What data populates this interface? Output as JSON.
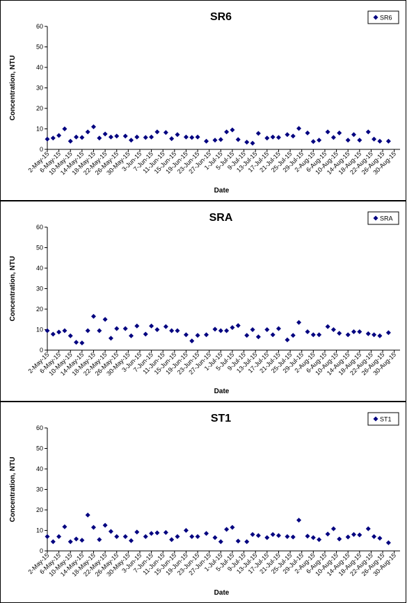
{
  "chart_data": [
    {
      "type": "scatter",
      "title": "SR6",
      "xlabel": "Date",
      "ylabel": "Concentration, NTU",
      "ylim": [
        0,
        60
      ],
      "yticks": [
        0,
        10,
        20,
        30,
        40,
        50,
        60
      ],
      "x_range": [
        "2-May-15",
        "1-Sep-15"
      ],
      "x_tick_labels": [
        "2-May-15",
        "6-May-15",
        "10-May-15",
        "14-May-15",
        "18-May-15",
        "22-May-15",
        "26-May-15",
        "30-May-15",
        "3-Jun-15",
        "7-Jun-15",
        "11-Jun-15",
        "15-Jun-15",
        "19-Jun-15",
        "23-Jun-15",
        "27-Jun-15",
        "1-Jul-15",
        "5-Jul-15",
        "9-Jul-15",
        "13-Jul-15",
        "17-Jul-15",
        "21-Jul-15",
        "25-Jul-15",
        "29-Jul-15",
        "2-Aug-15",
        "6-Aug-15",
        "10-Aug-15",
        "14-Aug-15",
        "18-Aug-15",
        "22-Aug-15",
        "26-Aug-15",
        "30-Aug-15"
      ],
      "grid": false,
      "legend_position": "top-right",
      "series": [
        {
          "name": "SR6",
          "color": "#000080",
          "marker": "diamond",
          "points": [
            [
              "2-May-15",
              5
            ],
            [
              "4-May-15",
              5.5
            ],
            [
              "6-May-15",
              6.8
            ],
            [
              "8-May-15",
              10
            ],
            [
              "10-May-15",
              4
            ],
            [
              "12-May-15",
              6
            ],
            [
              "14-May-15",
              5.8
            ],
            [
              "16-May-15",
              8.5
            ],
            [
              "18-May-15",
              11
            ],
            [
              "20-May-15",
              5.5
            ],
            [
              "22-May-15",
              7.5
            ],
            [
              "24-May-15",
              6
            ],
            [
              "26-May-15",
              6.5
            ],
            [
              "29-May-15",
              6.5
            ],
            [
              "31-May-15",
              4.5
            ],
            [
              "2-Jun-15",
              6
            ],
            [
              "5-Jun-15",
              5.8
            ],
            [
              "7-Jun-15",
              6
            ],
            [
              "9-Jun-15",
              8.5
            ],
            [
              "12-Jun-15",
              8.2
            ],
            [
              "14-Jun-15",
              5.2
            ],
            [
              "16-Jun-15",
              7.2
            ],
            [
              "19-Jun-15",
              6
            ],
            [
              "21-Jun-15",
              5.8
            ],
            [
              "23-Jun-15",
              6
            ],
            [
              "26-Jun-15",
              4
            ],
            [
              "29-Jun-15",
              4.5
            ],
            [
              "1-Jul-15",
              4.8
            ],
            [
              "3-Jul-15",
              8.5
            ],
            [
              "5-Jul-15",
              9.5
            ],
            [
              "7-Jul-15",
              4.8
            ],
            [
              "10-Jul-15",
              3.5
            ],
            [
              "12-Jul-15",
              3
            ],
            [
              "14-Jul-15",
              7.8
            ],
            [
              "17-Jul-15",
              5.5
            ],
            [
              "19-Jul-15",
              6
            ],
            [
              "21-Jul-15",
              5.8
            ],
            [
              "24-Jul-15",
              7.2
            ],
            [
              "26-Jul-15",
              6.5
            ],
            [
              "28-Jul-15",
              10.2
            ],
            [
              "31-Jul-15",
              8
            ],
            [
              "2-Aug-15",
              3.8
            ],
            [
              "4-Aug-15",
              4.5
            ],
            [
              "7-Aug-15",
              8.5
            ],
            [
              "9-Aug-15",
              5.8
            ],
            [
              "11-Aug-15",
              8
            ],
            [
              "14-Aug-15",
              4.5
            ],
            [
              "16-Aug-15",
              7.2
            ],
            [
              "18-Aug-15",
              4.5
            ],
            [
              "21-Aug-15",
              8.5
            ],
            [
              "23-Aug-15",
              5
            ],
            [
              "25-Aug-15",
              4
            ],
            [
              "28-Aug-15",
              4
            ]
          ]
        }
      ]
    },
    {
      "type": "scatter",
      "title": "SRA",
      "xlabel": "Date",
      "ylabel": "Concentration, NTU",
      "ylim": [
        0,
        60
      ],
      "yticks": [
        0,
        10,
        20,
        30,
        40,
        50,
        60
      ],
      "x_range": [
        "2-May-15",
        "1-Sep-15"
      ],
      "x_tick_labels": [
        "2-May-15",
        "6-May-15",
        "10-May-15",
        "14-May-15",
        "18-May-15",
        "22-May-15",
        "26-May-15",
        "30-May-15",
        "3-Jun-15",
        "7-Jun-15",
        "11-Jun-15",
        "15-Jun-15",
        "19-Jun-15",
        "23-Jun-15",
        "27-Jun-15",
        "1-Jul-15",
        "5-Jul-15",
        "9-Jul-15",
        "13-Jul-15",
        "17-Jul-15",
        "21-Jul-15",
        "25-Jul-15",
        "29-Jul-15",
        "2-Aug-15",
        "6-Aug-15",
        "10-Aug-15",
        "14-Aug-15",
        "18-Aug-15",
        "22-Aug-15",
        "26-Aug-15",
        "30-Aug-15"
      ],
      "grid": false,
      "legend_position": "top-right",
      "series": [
        {
          "name": "SRA",
          "color": "#000080",
          "marker": "diamond",
          "points": [
            [
              "2-May-15",
              9.5
            ],
            [
              "4-May-15",
              7.8
            ],
            [
              "6-May-15",
              8.8
            ],
            [
              "8-May-15",
              9.5
            ],
            [
              "10-May-15",
              7
            ],
            [
              "12-May-15",
              3.8
            ],
            [
              "14-May-15",
              3.5
            ],
            [
              "16-May-15",
              9.5
            ],
            [
              "18-May-15",
              16.5
            ],
            [
              "20-May-15",
              9.5
            ],
            [
              "22-May-15",
              15
            ],
            [
              "24-May-15",
              5.8
            ],
            [
              "26-May-15",
              10.5
            ],
            [
              "29-May-15",
              10.5
            ],
            [
              "31-May-15",
              7
            ],
            [
              "2-Jun-15",
              11.8
            ],
            [
              "5-Jun-15",
              7.8
            ],
            [
              "7-Jun-15",
              11.8
            ],
            [
              "9-Jun-15",
              10
            ],
            [
              "12-Jun-15",
              11.5
            ],
            [
              "14-Jun-15",
              9.5
            ],
            [
              "16-Jun-15",
              9.5
            ],
            [
              "19-Jun-15",
              7.5
            ],
            [
              "21-Jun-15",
              4.5
            ],
            [
              "23-Jun-15",
              7.2
            ],
            [
              "26-Jun-15",
              7.5
            ],
            [
              "29-Jun-15",
              10.2
            ],
            [
              "1-Jul-15",
              9.5
            ],
            [
              "3-Jul-15",
              9.5
            ],
            [
              "5-Jul-15",
              11
            ],
            [
              "7-Jul-15",
              12
            ],
            [
              "10-Jul-15",
              7.2
            ],
            [
              "12-Jul-15",
              10
            ],
            [
              "14-Jul-15",
              6.5
            ],
            [
              "17-Jul-15",
              10
            ],
            [
              "19-Jul-15",
              7.5
            ],
            [
              "21-Jul-15",
              10.5
            ],
            [
              "24-Jul-15",
              5
            ],
            [
              "26-Jul-15",
              7.2
            ],
            [
              "28-Jul-15",
              13.5
            ],
            [
              "31-Jul-15",
              9
            ],
            [
              "2-Aug-15",
              7.5
            ],
            [
              "4-Aug-15",
              7.5
            ],
            [
              "7-Aug-15",
              11.5
            ],
            [
              "9-Aug-15",
              10
            ],
            [
              "11-Aug-15",
              8.2
            ],
            [
              "14-Aug-15",
              7.5
            ],
            [
              "16-Aug-15",
              9
            ],
            [
              "18-Aug-15",
              9
            ],
            [
              "21-Aug-15",
              8
            ],
            [
              "23-Aug-15",
              7.5
            ],
            [
              "25-Aug-15",
              7
            ],
            [
              "28-Aug-15",
              8.5
            ]
          ]
        }
      ]
    },
    {
      "type": "scatter",
      "title": "ST1",
      "xlabel": "Date",
      "ylabel": "Concentration, NTU",
      "ylim": [
        0,
        60
      ],
      "yticks": [
        0,
        10,
        20,
        30,
        40,
        50,
        60
      ],
      "x_range": [
        "2-May-15",
        "1-Sep-15"
      ],
      "x_tick_labels": [
        "2-May-15",
        "6-May-15",
        "10-May-15",
        "14-May-15",
        "18-May-15",
        "22-May-15",
        "26-May-15",
        "30-May-15",
        "3-Jun-15",
        "7-Jun-15",
        "11-Jun-15",
        "15-Jun-15",
        "19-Jun-15",
        "23-Jun-15",
        "27-Jun-15",
        "1-Jul-15",
        "5-Jul-15",
        "9-Jul-15",
        "13-Jul-15",
        "17-Jul-15",
        "21-Jul-15",
        "25-Jul-15",
        "29-Jul-15",
        "2-Aug-15",
        "6-Aug-15",
        "10-Aug-15",
        "14-Aug-15",
        "18-Aug-15",
        "22-Aug-15",
        "26-Aug-15",
        "30-Aug-15"
      ],
      "grid": false,
      "legend_position": "top-right",
      "series": [
        {
          "name": "ST1",
          "color": "#000080",
          "marker": "diamond",
          "points": [
            [
              "2-May-15",
              7
            ],
            [
              "4-May-15",
              4.5
            ],
            [
              "6-May-15",
              7
            ],
            [
              "8-May-15",
              11.8
            ],
            [
              "10-May-15",
              4.5
            ],
            [
              "12-May-15",
              5.8
            ],
            [
              "14-May-15",
              5.2
            ],
            [
              "16-May-15",
              17.5
            ],
            [
              "18-May-15",
              11.5
            ],
            [
              "20-May-15",
              5.5
            ],
            [
              "22-May-15",
              12.5
            ],
            [
              "24-May-15",
              9.5
            ],
            [
              "26-May-15",
              7
            ],
            [
              "29-May-15",
              7
            ],
            [
              "31-May-15",
              5
            ],
            [
              "2-Jun-15",
              9.2
            ],
            [
              "5-Jun-15",
              7
            ],
            [
              "7-Jun-15",
              8.5
            ],
            [
              "9-Jun-15",
              8.8
            ],
            [
              "12-Jun-15",
              9
            ],
            [
              "14-Jun-15",
              5.5
            ],
            [
              "16-Jun-15",
              7
            ],
            [
              "19-Jun-15",
              10
            ],
            [
              "21-Jun-15",
              7
            ],
            [
              "23-Jun-15",
              7
            ],
            [
              "26-Jun-15",
              8.5
            ],
            [
              "29-Jun-15",
              6.5
            ],
            [
              "1-Jul-15",
              4.5
            ],
            [
              "3-Jul-15",
              10.5
            ],
            [
              "5-Jul-15",
              11.5
            ],
            [
              "7-Jul-15",
              4.8
            ],
            [
              "10-Jul-15",
              4.5
            ],
            [
              "12-Jul-15",
              8
            ],
            [
              "14-Jul-15",
              7.5
            ],
            [
              "17-Jul-15",
              6.5
            ],
            [
              "19-Jul-15",
              8
            ],
            [
              "21-Jul-15",
              7.5
            ],
            [
              "24-Jul-15",
              7
            ],
            [
              "26-Jul-15",
              6.8
            ],
            [
              "28-Jul-15",
              15
            ],
            [
              "31-Jul-15",
              7.2
            ],
            [
              "2-Aug-15",
              6.5
            ],
            [
              "4-Aug-15",
              5.5
            ],
            [
              "7-Aug-15",
              8.2
            ],
            [
              "9-Aug-15",
              10.8
            ],
            [
              "11-Aug-15",
              5.8
            ],
            [
              "14-Aug-15",
              6.8
            ],
            [
              "16-Aug-15",
              8
            ],
            [
              "18-Aug-15",
              7.8
            ],
            [
              "21-Aug-15",
              10.8
            ],
            [
              "23-Aug-15",
              7
            ],
            [
              "25-Aug-15",
              6.2
            ],
            [
              "28-Aug-15",
              4
            ]
          ]
        }
      ]
    }
  ]
}
